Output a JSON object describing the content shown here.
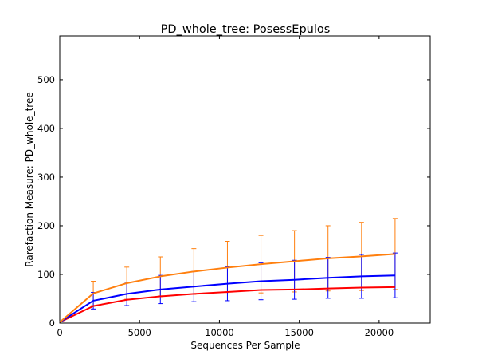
{
  "chart_data": {
    "type": "line",
    "title": "PD_whole_tree: PosessEpulos",
    "xlabel": "Sequences Per Sample",
    "ylabel": "Rarefaction Measure: PD_whole_tree",
    "xlim": [
      0,
      23200
    ],
    "ylim": [
      0,
      590
    ],
    "x_ticks": [
      0,
      5000,
      10000,
      15000,
      20000
    ],
    "y_ticks": [
      0,
      100,
      200,
      300,
      400,
      500
    ],
    "grid": false,
    "x": [
      10,
      2100,
      4200,
      6300,
      8400,
      10500,
      12600,
      14700,
      16800,
      18900,
      21000
    ],
    "series": [
      {
        "color": "#ff7f0e",
        "values": [
          2,
          61,
          82,
          96,
          106,
          114,
          121,
          127,
          133,
          137,
          142
        ],
        "errors": [
          0,
          25,
          33,
          40,
          47,
          54,
          59,
          63,
          67,
          70,
          73
        ]
      },
      {
        "color": "#0000ff",
        "values": [
          2,
          46,
          60,
          69,
          75,
          81,
          86,
          89,
          93,
          96,
          98
        ],
        "errors": [
          0,
          17,
          24,
          29,
          31,
          35,
          38,
          40,
          42,
          45,
          46
        ]
      },
      {
        "color": "#ff0000",
        "values": [
          2,
          35,
          48,
          55,
          60,
          64,
          68,
          69,
          71,
          73,
          74
        ],
        "errors": [
          0,
          0,
          0,
          0,
          0,
          0,
          0,
          0,
          0,
          0,
          0
        ]
      }
    ]
  }
}
